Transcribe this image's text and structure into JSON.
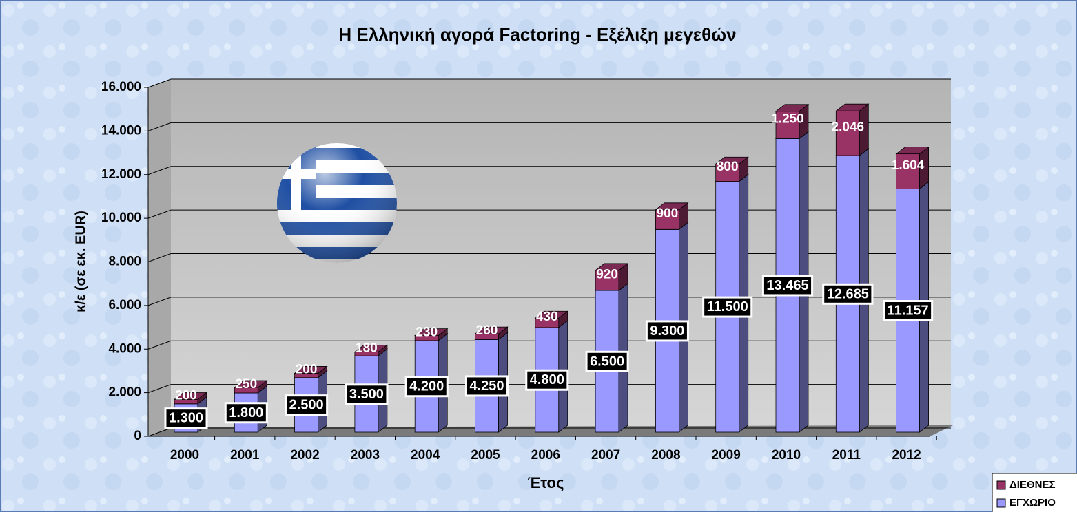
{
  "chart_data": {
    "type": "stacked-bar-3d",
    "title": "Η Ελληνική αγορά Factoring - Εξέλιξη μεγεθών",
    "x_label": "Έτος",
    "y_label": "κ/ε (σε εκ. EUR)",
    "categories": [
      "2000",
      "2001",
      "2002",
      "2003",
      "2004",
      "2005",
      "2006",
      "2007",
      "2008",
      "2009",
      "2010",
      "2011",
      "2012"
    ],
    "series": [
      {
        "name": "ΕΓΧΩΡΙΟ",
        "color": "#9999ff",
        "values": [
          1300,
          1800,
          2500,
          3500,
          4200,
          4250,
          4800,
          6500,
          9300,
          11500,
          13465,
          12685,
          11157
        ],
        "value_labels": [
          "1.300",
          "1.800",
          "2.500",
          "3.500",
          "4.200",
          "4.250",
          "4.800",
          "6.500",
          "9.300",
          "11.500",
          "13.465",
          "12.685",
          "11.157"
        ]
      },
      {
        "name": "ΔΙΕΘΝΕΣ",
        "color": "#993366",
        "values": [
          200,
          250,
          200,
          180,
          230,
          260,
          430,
          920,
          900,
          800,
          1250,
          2046,
          1604
        ],
        "value_labels": [
          "200",
          "250",
          "200",
          "180",
          "230",
          "260",
          "430",
          "920",
          "900",
          "800",
          "1.250",
          "2.046",
          "1.604"
        ]
      }
    ],
    "ylim": [
      0,
      16000
    ],
    "yticks": [
      0,
      {
        "value": 2000,
        "label": "2.000"
      },
      {
        "value": 4000,
        "label": "4.000"
      },
      {
        "value": 6000,
        "label": "6.000"
      },
      {
        "value": 8000,
        "label": "8.000"
      },
      {
        "value": 10000,
        "label": "10.000"
      },
      {
        "value": 12000,
        "label": "12.000"
      },
      {
        "value": 14000,
        "label": "14.000"
      },
      {
        "value": 16000,
        "label": "16.000"
      }
    ],
    "grid": true
  }
}
